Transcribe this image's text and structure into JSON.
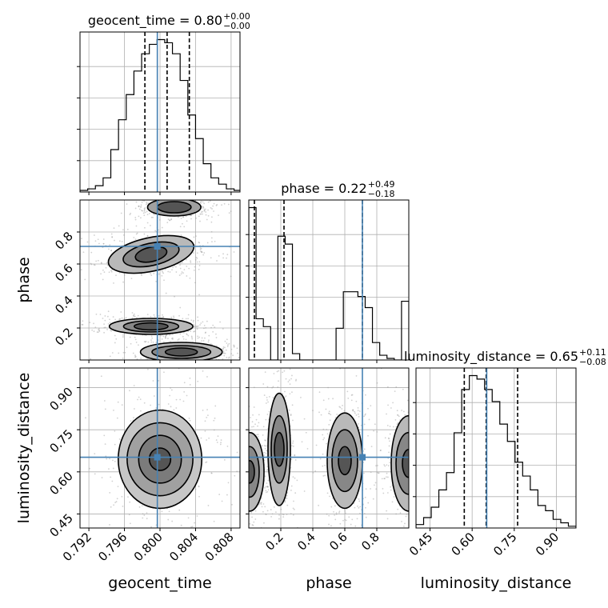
{
  "chart_data": {
    "type": "corner",
    "truth_color": "#4682b4",
    "contour_color": "#000000",
    "parameters": [
      {
        "name": "geocent_time",
        "axis_label": "geocent_time",
        "title": "geocent_time = 0.80",
        "title_upper": "+0.00",
        "title_lower": "−0.00",
        "range": [
          0.791,
          0.809
        ],
        "ticks": [
          0.792,
          0.796,
          0.8,
          0.804,
          0.808
        ],
        "tick_labels": [
          "0.792",
          "0.796",
          "0.800",
          "0.804",
          "0.808"
        ],
        "truth": 0.7997,
        "quantiles": [
          0.7983,
          0.8008,
          0.8033
        ],
        "hist_edges": [
          0.791,
          0.8092
        ],
        "hist_counts": [
          1,
          2,
          4,
          9,
          27,
          46,
          62,
          77,
          88,
          94,
          97,
          95,
          88,
          71,
          49,
          34,
          18,
          9,
          5,
          2,
          1
        ]
      },
      {
        "name": "phase",
        "axis_label": "phase",
        "title": "phase = 0.22",
        "title_upper": "+0.49",
        "title_lower": "−0.18",
        "range": [
          0.0,
          1.0
        ],
        "ticks": [
          0.2,
          0.4,
          0.6,
          0.8
        ],
        "tick_labels": [
          "0.2",
          "0.4",
          "0.6",
          "0.8"
        ],
        "truth": 0.71,
        "quantiles": [
          0.035,
          0.22,
          0.71
        ],
        "hist_edges": [
          0.0,
          1.0
        ],
        "hist_counts": [
          96,
          26,
          21,
          0,
          78,
          73,
          4,
          0,
          0,
          0,
          0,
          0,
          20,
          43,
          43,
          40,
          33,
          11,
          3,
          1,
          0,
          37
        ]
      },
      {
        "name": "luminosity_distance",
        "axis_label": "luminosity_distance",
        "title": "luminosity_distance = 0.65",
        "title_upper": "+0.11",
        "title_lower": "−0.08",
        "range": [
          0.4,
          0.97
        ],
        "ticks": [
          0.45,
          0.6,
          0.75,
          0.9
        ],
        "tick_labels": [
          "0.45",
          "0.60",
          "0.75",
          "0.90"
        ],
        "truth": 0.652,
        "quantiles": [
          0.572,
          0.65,
          0.762
        ],
        "hist_edges": [
          0.4,
          0.97
        ],
        "hist_counts": [
          2,
          6,
          12,
          22,
          32,
          55,
          80,
          88,
          86,
          80,
          73,
          60,
          50,
          38,
          30,
          22,
          13,
          10,
          5,
          3,
          1
        ]
      }
    ],
    "truth_point": [
      0.7997,
      0.71,
      0.652
    ],
    "contours": {
      "phase_vs_geocent_time": [
        {
          "center": [
            0.8016,
            0.955
          ],
          "levels": [
            [
              0.0019,
              0.035
            ],
            [
              0.003,
              0.055
            ]
          ],
          "angle": 0
        },
        {
          "center": [
            0.799,
            0.66
          ],
          "levels": [
            [
              0.0018,
              0.045
            ],
            [
              0.0032,
              0.07
            ],
            [
              0.0049,
              0.105
            ]
          ],
          "angle": -12
        },
        {
          "center": [
            0.799,
            0.21
          ],
          "levels": [
            [
              0.0019,
              0.022
            ],
            [
              0.0031,
              0.035
            ],
            [
              0.0047,
              0.05
            ]
          ],
          "angle": 0
        },
        {
          "center": [
            0.8024,
            0.05
          ],
          "levels": [
            [
              0.0018,
              0.025
            ],
            [
              0.0033,
              0.04
            ],
            [
              0.0046,
              0.06
            ]
          ],
          "angle": 0
        }
      ],
      "luminosity_distance_vs_geocent_time": [
        {
          "center": [
            0.8,
            0.645
          ],
          "levels": [
            [
              0.0012,
              0.04
            ],
            [
              0.0024,
              0.085
            ],
            [
              0.0037,
              0.13
            ],
            [
              0.0047,
              0.175
            ]
          ],
          "angle": 0
        }
      ],
      "luminosity_distance_vs_phase": [
        {
          "center": [
            0.005,
            0.6
          ],
          "levels": [
            [
              0.03,
              0.04
            ],
            [
              0.06,
              0.09
            ],
            [
              0.09,
              0.14
            ]
          ],
          "angle": 0
        },
        {
          "center": [
            0.19,
            0.68
          ],
          "levels": [
            [
              0.03,
              0.06
            ],
            [
              0.05,
              0.12
            ],
            [
              0.07,
              0.2
            ]
          ],
          "angle": 0
        },
        {
          "center": [
            0.6,
            0.64
          ],
          "levels": [
            [
              0.04,
              0.05
            ],
            [
              0.08,
              0.11
            ],
            [
              0.11,
              0.17
            ]
          ],
          "angle": 0
        },
        {
          "center": [
            1.0,
            0.63
          ],
          "levels": [
            [
              0.04,
              0.05
            ],
            [
              0.08,
              0.11
            ],
            [
              0.11,
              0.17
            ]
          ],
          "angle": 0
        }
      ]
    }
  }
}
